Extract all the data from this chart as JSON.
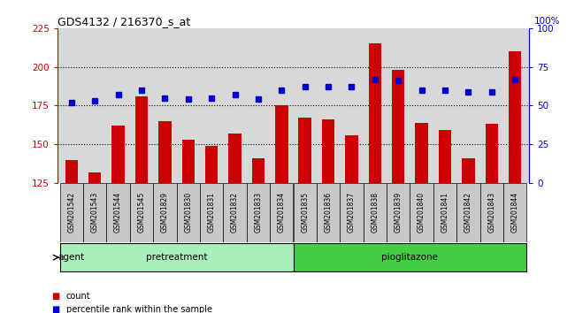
{
  "title": "GDS4132 / 216370_s_at",
  "samples": [
    "GSM201542",
    "GSM201543",
    "GSM201544",
    "GSM201545",
    "GSM201829",
    "GSM201830",
    "GSM201831",
    "GSM201832",
    "GSM201833",
    "GSM201834",
    "GSM201835",
    "GSM201836",
    "GSM201837",
    "GSM201838",
    "GSM201839",
    "GSM201840",
    "GSM201841",
    "GSM201842",
    "GSM201843",
    "GSM201844"
  ],
  "counts": [
    140,
    132,
    162,
    181,
    165,
    153,
    149,
    157,
    141,
    175,
    167,
    166,
    156,
    215,
    198,
    164,
    159,
    141,
    163,
    210
  ],
  "percentiles": [
    52,
    53,
    57,
    60,
    55,
    54,
    55,
    57,
    54,
    60,
    62,
    62,
    62,
    67,
    66,
    60,
    60,
    59,
    59,
    67
  ],
  "bar_color": "#cc0000",
  "dot_color": "#0000cc",
  "ylim_left": [
    125,
    225
  ],
  "ylim_right": [
    0,
    100
  ],
  "yticks_left": [
    125,
    150,
    175,
    200,
    225
  ],
  "yticks_right": [
    0,
    25,
    50,
    75,
    100
  ],
  "group_colors": {
    "pretreatment": "#aaeebb",
    "pioglitazone": "#44cc44"
  },
  "agent_label": "agent",
  "legend_count": "count",
  "legend_percentile": "percentile rank within the sample",
  "plot_bg": "#d8d8d8",
  "xtick_bg": "#c8c8c8",
  "pretreatment_count": 10,
  "pioglitazone_count": 10,
  "dotted_lines": [
    150,
    175,
    200
  ],
  "bar_width": 0.55
}
